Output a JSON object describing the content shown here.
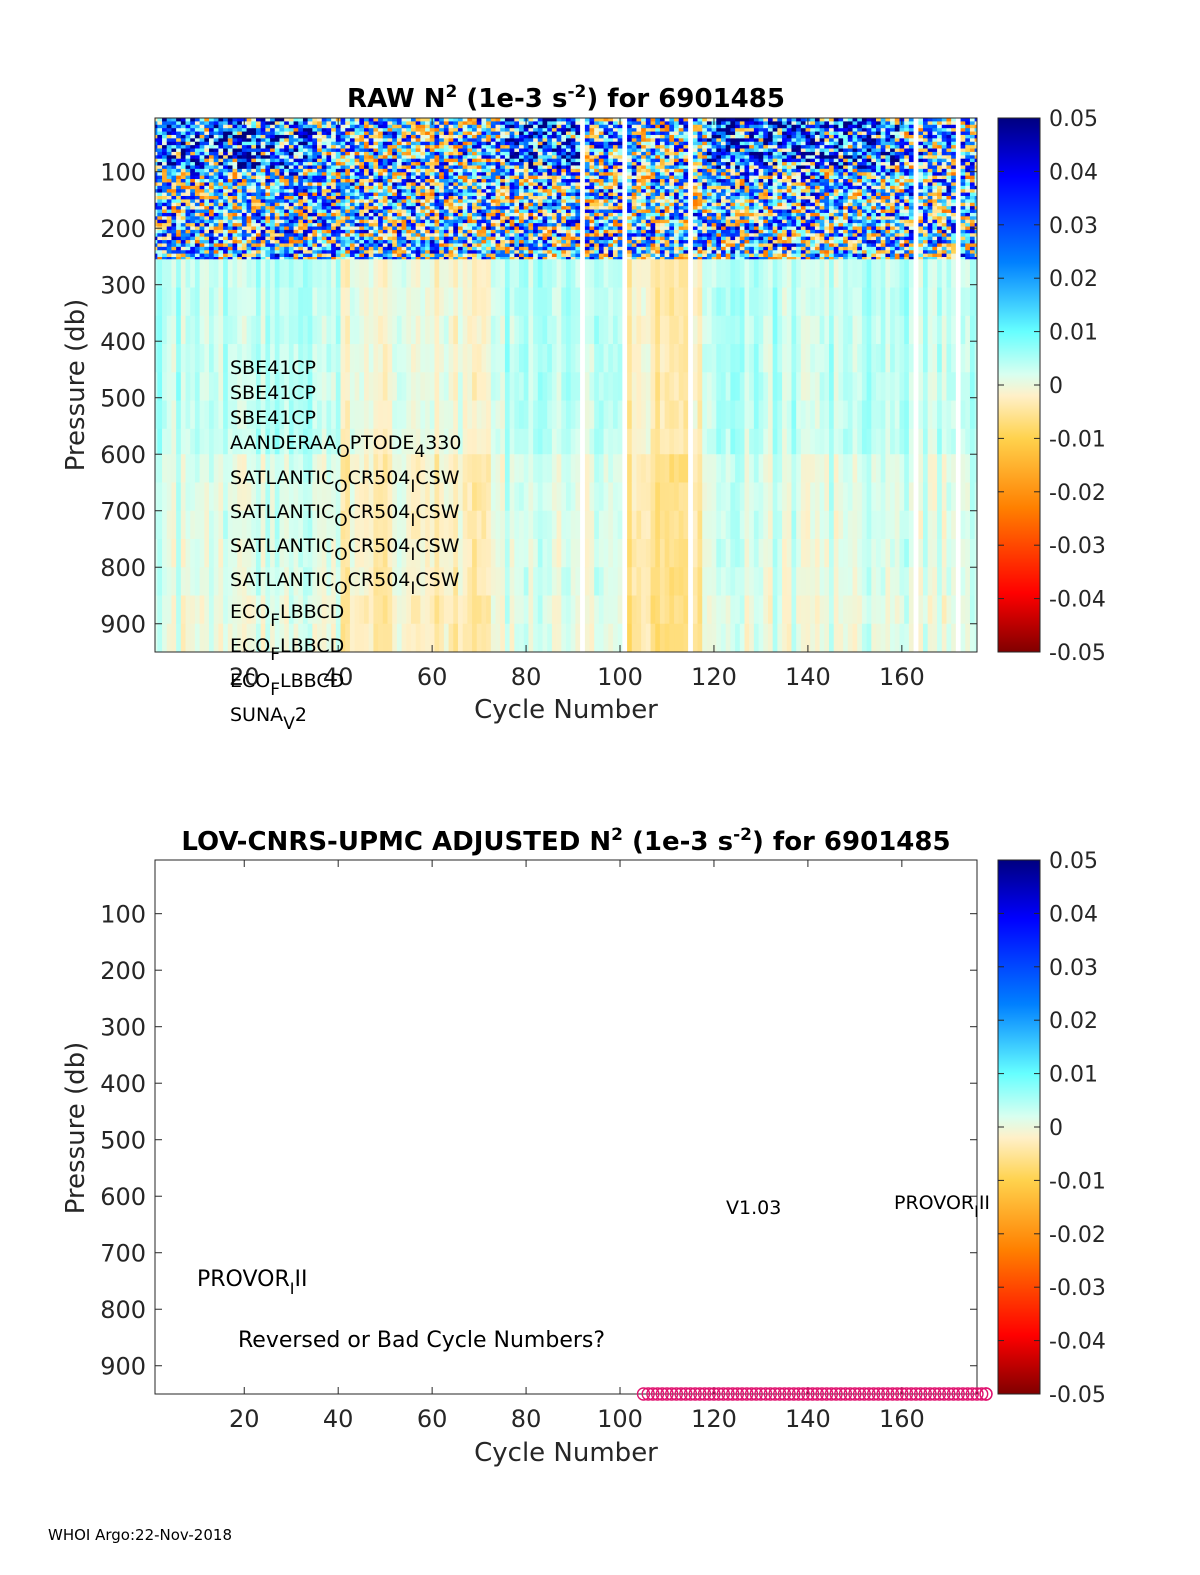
{
  "footer": "WHOI Argo:22-Nov-2018",
  "chart_data": [
    {
      "type": "heatmap",
      "title": {
        "main": "RAW N",
        "sup1": "2",
        "mid": " (1e-3 s",
        "sup2": "-2",
        "end": ") for 6901485"
      },
      "xlabel": "Cycle Number",
      "ylabel": "Pressure (db)",
      "xlim": [
        1,
        176
      ],
      "ylim": [
        950,
        5
      ],
      "xticks": [
        20,
        40,
        60,
        80,
        100,
        120,
        140,
        160
      ],
      "yticks": [
        100,
        200,
        300,
        400,
        500,
        600,
        700,
        800,
        900
      ],
      "colorbar": {
        "min": -0.05,
        "max": 0.05,
        "ticks": [
          "0.05",
          "0.04",
          "0.03",
          "0.02",
          "0.01",
          "0",
          "-0.01",
          "-0.02",
          "-0.03",
          "-0.04",
          "-0.05"
        ]
      },
      "missing_cycles": [
        92,
        101,
        115,
        163,
        172
      ],
      "depth_bands": [
        {
          "pmin": 5,
          "pmax": 255,
          "texture": "noisy",
          "typical": 0.018
        },
        {
          "pmin": 255,
          "pmax": 600,
          "texture": "smooth",
          "typical": 0.004
        },
        {
          "pmin": 600,
          "pmax": 850,
          "texture": "smooth",
          "typical": 0.002
        },
        {
          "pmin": 850,
          "pmax": 950,
          "texture": "smooth",
          "typical": 0.001
        }
      ],
      "annotations": [
        {
          "base": "SBE41CP"
        },
        {
          "base": "SBE41CP"
        },
        {
          "base": "SBE41CP"
        },
        {
          "parts": [
            [
              "AANDERAA",
              ""
            ],
            [
              "O",
              "sub"
            ],
            [
              "PTODE",
              ""
            ],
            [
              "4",
              "sub"
            ],
            [
              "330",
              ""
            ]
          ]
        },
        {
          "parts": [
            [
              "SATLANTIC",
              ""
            ],
            [
              "O",
              "sub"
            ],
            [
              "CR504",
              ""
            ],
            [
              "I",
              "sub"
            ],
            [
              "CSW",
              ""
            ]
          ]
        },
        {
          "parts": [
            [
              "SATLANTIC",
              ""
            ],
            [
              "O",
              "sub"
            ],
            [
              "CR504",
              ""
            ],
            [
              "I",
              "sub"
            ],
            [
              "CSW",
              ""
            ]
          ]
        },
        {
          "parts": [
            [
              "SATLANTIC",
              ""
            ],
            [
              "O",
              "sub"
            ],
            [
              "CR504",
              ""
            ],
            [
              "I",
              "sub"
            ],
            [
              "CSW",
              ""
            ]
          ]
        },
        {
          "parts": [
            [
              "SATLANTIC",
              ""
            ],
            [
              "O",
              "sub"
            ],
            [
              "CR504",
              ""
            ],
            [
              "I",
              "sub"
            ],
            [
              "CSW",
              ""
            ]
          ]
        },
        {
          "parts": [
            [
              "ECO",
              ""
            ],
            [
              "F",
              "sub"
            ],
            [
              "LBBCD",
              ""
            ]
          ]
        },
        {
          "parts": [
            [
              "ECO",
              ""
            ],
            [
              "F",
              "sub"
            ],
            [
              "LBBCD",
              ""
            ]
          ]
        },
        {
          "parts": [
            [
              "ECO",
              ""
            ],
            [
              "F",
              "sub"
            ],
            [
              "LBBCD",
              ""
            ]
          ]
        },
        {
          "parts": [
            [
              "SUNA",
              ""
            ],
            [
              "V",
              "sub"
            ],
            [
              "2",
              ""
            ]
          ]
        }
      ]
    },
    {
      "type": "scatter",
      "title": {
        "main": "LOV-CNRS-UPMC  ADJUSTED N",
        "sup1": "2",
        "mid": " (1e-3 s",
        "sup2": "-2",
        "end": ") for 6901485"
      },
      "xlabel": "Cycle Number",
      "ylabel": "Pressure (db)",
      "xlim": [
        1,
        176
      ],
      "ylim": [
        950,
        5
      ],
      "xticks": [
        20,
        40,
        60,
        80,
        100,
        120,
        140,
        160
      ],
      "yticks": [
        100,
        200,
        300,
        400,
        500,
        600,
        700,
        800,
        900
      ],
      "colorbar": {
        "min": -0.05,
        "max": 0.05,
        "ticks": [
          "0.05",
          "0.04",
          "0.03",
          "0.02",
          "0.01",
          "0",
          "-0.01",
          "-0.02",
          "-0.03",
          "-0.04",
          "-0.05"
        ]
      },
      "markers": {
        "x_from": 105,
        "x_to": 179,
        "y": 950,
        "color": "#e0126f",
        "style": "open-circle"
      },
      "annotations": {
        "version": "V1.03",
        "platform_left": {
          "parts": [
            [
              "PROVOR",
              ""
            ],
            [
              "I",
              "sub"
            ],
            [
              "II",
              ""
            ]
          ]
        },
        "platform_right": {
          "parts": [
            [
              "PROVOR",
              ""
            ],
            [
              "I",
              "sub"
            ],
            [
              "II",
              ""
            ]
          ]
        },
        "warning": "Reversed or Bad Cycle Numbers?"
      }
    }
  ]
}
